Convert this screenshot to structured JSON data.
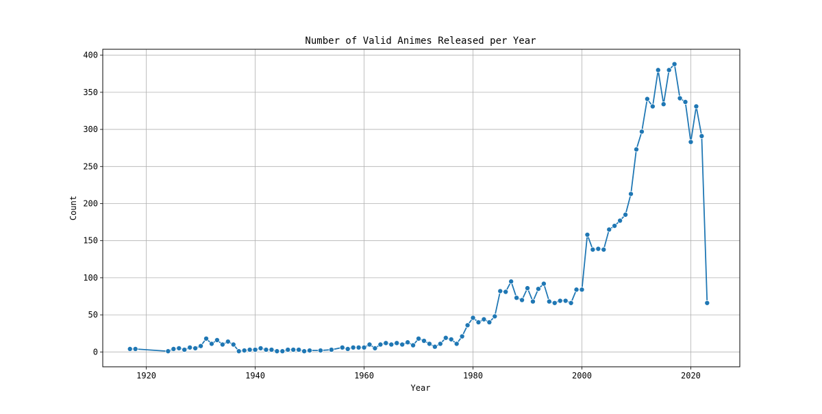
{
  "chart_data": {
    "type": "line",
    "title": "Number of Valid Animes Released per Year",
    "xlabel": "Year",
    "ylabel": "Count",
    "xlim": [
      1912,
      2029
    ],
    "ylim": [
      -20,
      408
    ],
    "x_ticks": [
      1920,
      1940,
      1960,
      1980,
      2000,
      2020
    ],
    "y_ticks": [
      0,
      50,
      100,
      150,
      200,
      250,
      300,
      350,
      400
    ],
    "grid": true,
    "legend": "none",
    "line_color": "#1f77b4",
    "series": [
      {
        "x": [
          1917,
          1918,
          1924,
          1925,
          1926,
          1927,
          1928,
          1929,
          1930,
          1931,
          1932,
          1933,
          1934,
          1935,
          1936,
          1937,
          1938,
          1939,
          1940,
          1941,
          1942,
          1943,
          1944,
          1945,
          1946,
          1947,
          1948,
          1949,
          1950,
          1952,
          1954,
          1956,
          1957,
          1958,
          1959,
          1960,
          1961,
          1962,
          1963,
          1964,
          1965,
          1966,
          1967,
          1968,
          1969,
          1970,
          1971,
          1972,
          1973,
          1974,
          1975,
          1976,
          1977,
          1978,
          1979,
          1980,
          1981,
          1982,
          1983,
          1984,
          1985,
          1986,
          1987,
          1988,
          1989,
          1990,
          1991,
          1992,
          1993,
          1994,
          1995,
          1996,
          1997,
          1998,
          1999,
          2000,
          2001,
          2002,
          2003,
          2004,
          2005,
          2006,
          2007,
          2008,
          2009,
          2010,
          2011,
          2012,
          2013,
          2014,
          2015,
          2016,
          2017,
          2018,
          2019,
          2020,
          2021,
          2022,
          2023
        ],
        "values": [
          4,
          4,
          1,
          4,
          5,
          3,
          6,
          5,
          8,
          18,
          11,
          16,
          10,
          14,
          10,
          1,
          2,
          3,
          3,
          5,
          3,
          3,
          1,
          1,
          3,
          3,
          3,
          1,
          2,
          2,
          3,
          6,
          4,
          6,
          6,
          6,
          10,
          5,
          10,
          12,
          10,
          12,
          10,
          13,
          9,
          18,
          15,
          11,
          7,
          11,
          19,
          17,
          11,
          21,
          36,
          46,
          40,
          44,
          40,
          48,
          82,
          81,
          95,
          73,
          70,
          86,
          68,
          85,
          92,
          68,
          66,
          69,
          69,
          66,
          84,
          84,
          158,
          138,
          139,
          138,
          165,
          170,
          177,
          185,
          213,
          273,
          297,
          341,
          331,
          380,
          334,
          380,
          388,
          342,
          337,
          283,
          331,
          291,
          66
        ]
      }
    ]
  }
}
